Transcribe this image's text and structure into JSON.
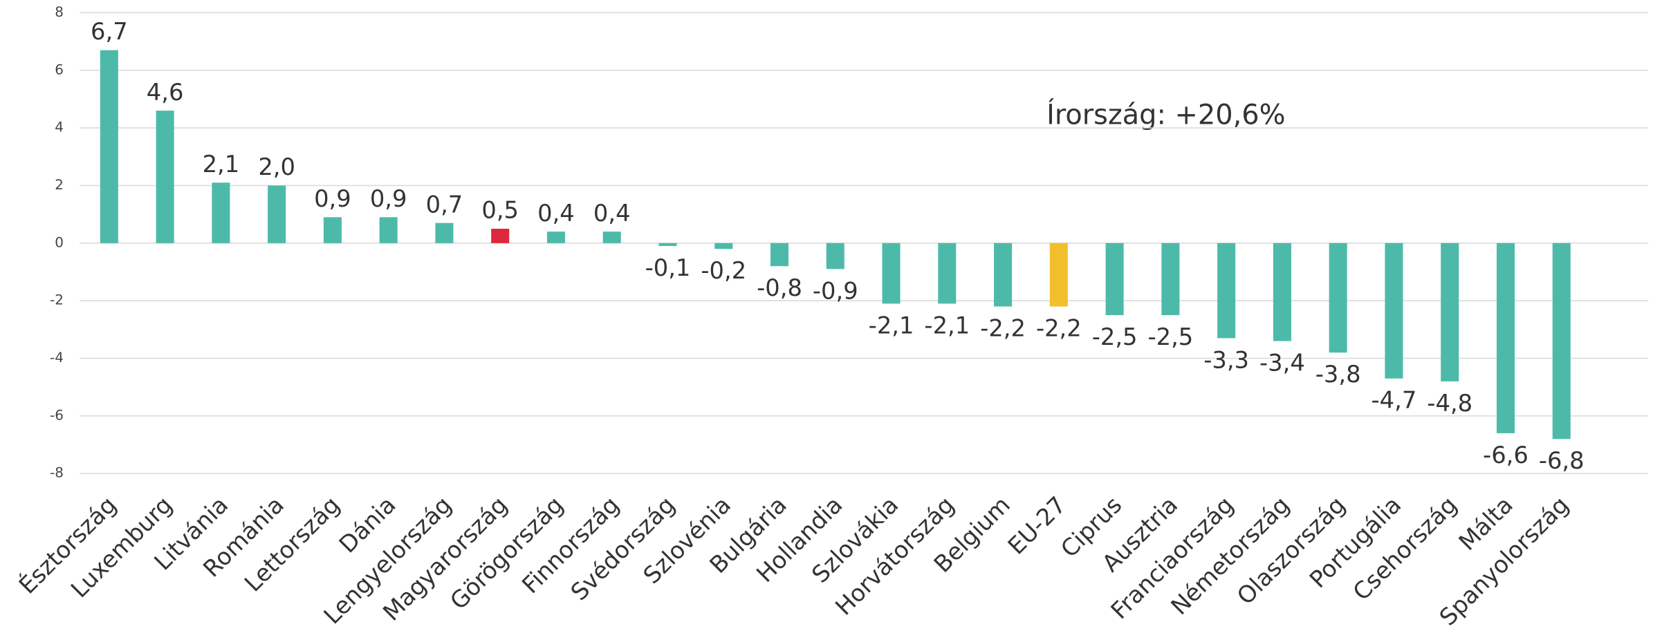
{
  "chart_data": {
    "type": "bar",
    "annotation": "Írország: +20,6%",
    "categories": [
      "Észtország",
      "Luxemburg",
      "Litvánia",
      "Románia",
      "Lettország",
      "Dánia",
      "Lengyelország",
      "Magyarország",
      "Görögország",
      "Finnország",
      "Svédország",
      "Szlovénia",
      "Bulgária",
      "Hollandia",
      "Szlovákia",
      "Horvátország",
      "Belgium",
      "EU-27",
      "Ciprus",
      "Ausztria",
      "Franciaország",
      "Németország",
      "Olaszország",
      "Portugália",
      "Csehország",
      "Málta",
      "Spanyolország"
    ],
    "values": [
      6.7,
      4.6,
      2.1,
      2.0,
      0.9,
      0.9,
      0.7,
      0.5,
      0.4,
      0.4,
      -0.1,
      -0.2,
      -0.8,
      -0.9,
      -2.1,
      -2.1,
      -2.2,
      -2.2,
      -2.5,
      -2.5,
      -3.3,
      -3.4,
      -3.8,
      -4.7,
      -4.8,
      -6.6,
      -6.8
    ],
    "value_labels": [
      "6,7",
      "4,6",
      "2,1",
      "2,0",
      "0,9",
      "0,9",
      "0,7",
      "0,5",
      "0,4",
      "0,4",
      "-0,1",
      "-0,2",
      "-0,8",
      "-0,9",
      "-2,1",
      "-2,1",
      "-2,2",
      "-2,2",
      "-2,5",
      "-2,5",
      "-3,3",
      "-3,4",
      "-3,8",
      "-4,7",
      "-4,8",
      "-6,6",
      "-6,8"
    ],
    "colors": [
      "#4dbaa9",
      "#4dbaa9",
      "#4dbaa9",
      "#4dbaa9",
      "#4dbaa9",
      "#4dbaa9",
      "#4dbaa9",
      "#e0283c",
      "#4dbaa9",
      "#4dbaa9",
      "#4dbaa9",
      "#4dbaa9",
      "#4dbaa9",
      "#4dbaa9",
      "#4dbaa9",
      "#4dbaa9",
      "#4dbaa9",
      "#f2bf2c",
      "#4dbaa9",
      "#4dbaa9",
      "#4dbaa9",
      "#4dbaa9",
      "#4dbaa9",
      "#4dbaa9",
      "#4dbaa9",
      "#4dbaa9",
      "#4dbaa9"
    ],
    "ylim": [
      -8,
      8
    ],
    "yticks": [
      8,
      6,
      4,
      2,
      0,
      -2,
      -4,
      -6,
      -8
    ],
    "grid": true
  }
}
